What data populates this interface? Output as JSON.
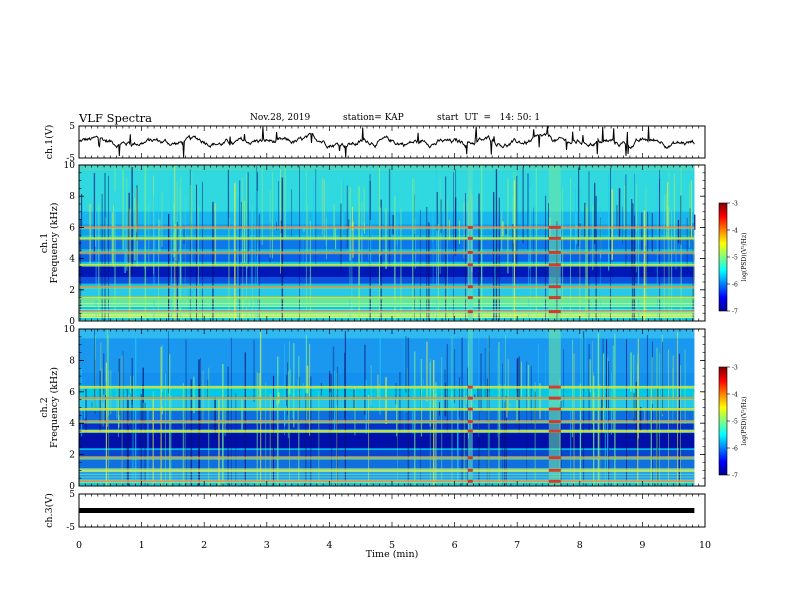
{
  "header": {
    "title": "VLF Spectra",
    "date": "Nov.28, 2019",
    "station": "station= KAP",
    "start": "start  UT  =   14: 50: 1"
  },
  "colorbar": {
    "label": "log(PSD)(V²/Hz)",
    "ticks": [
      "-3",
      "-4",
      "-5",
      "-6",
      "-7"
    ]
  },
  "chart_data": [
    {
      "type": "line",
      "title": "",
      "ylabel": "ch.1(V)",
      "ylim": [
        -5,
        5
      ],
      "yticks": [
        "5",
        "-5"
      ],
      "xlim": [
        0,
        10
      ],
      "series": [
        {
          "name": "",
          "description": "noisy waveform fluctuating roughly between -2 and 2 V around 0"
        }
      ]
    },
    {
      "type": "heatmap",
      "ylabel": "ch.1  Frequency (kHz)",
      "ylim": [
        0,
        10
      ],
      "yticks": [
        "0",
        "2",
        "4",
        "6",
        "8",
        "10"
      ],
      "xlim": [
        0,
        10
      ],
      "colorscale": "jet",
      "zlim": [
        -7,
        -3
      ],
      "strong_lines_khz": [
        0.6,
        1.5,
        2.2,
        3.6,
        4.4,
        5.3,
        6.0
      ],
      "vertical_bursts_min": [
        6.25,
        7.6
      ]
    },
    {
      "type": "heatmap",
      "ylabel": "ch.2  Frequency (kHz)",
      "ylim": [
        0,
        10
      ],
      "yticks": [
        "0",
        "2",
        "4",
        "6",
        "8",
        "10"
      ],
      "xlim": [
        0,
        10
      ],
      "colorscale": "jet",
      "zlim": [
        -7,
        -3
      ],
      "strong_lines_khz": [
        0.3,
        1.0,
        1.8,
        3.5,
        4.1,
        4.9,
        5.6,
        6.3
      ],
      "vertical_bursts_min": [
        6.25,
        7.6
      ]
    },
    {
      "type": "line",
      "ylabel": "ch.3(V)",
      "ylim": [
        -5,
        5
      ],
      "yticks": [
        "5",
        "-5"
      ],
      "xlim": [
        0,
        10
      ],
      "series": [
        {
          "name": "",
          "values": [
            0,
            0
          ]
        }
      ]
    }
  ],
  "xaxis": {
    "label": "Time  (min)",
    "ticks": [
      "0",
      "1",
      "2",
      "3",
      "4",
      "5",
      "6",
      "7",
      "8",
      "9",
      "10"
    ]
  },
  "colors": {
    "jet": [
      "#00008f",
      "#0000ff",
      "#0080ff",
      "#00ffff",
      "#80ff80",
      "#ffff00",
      "#ff8000",
      "#ff0000",
      "#800000"
    ]
  }
}
